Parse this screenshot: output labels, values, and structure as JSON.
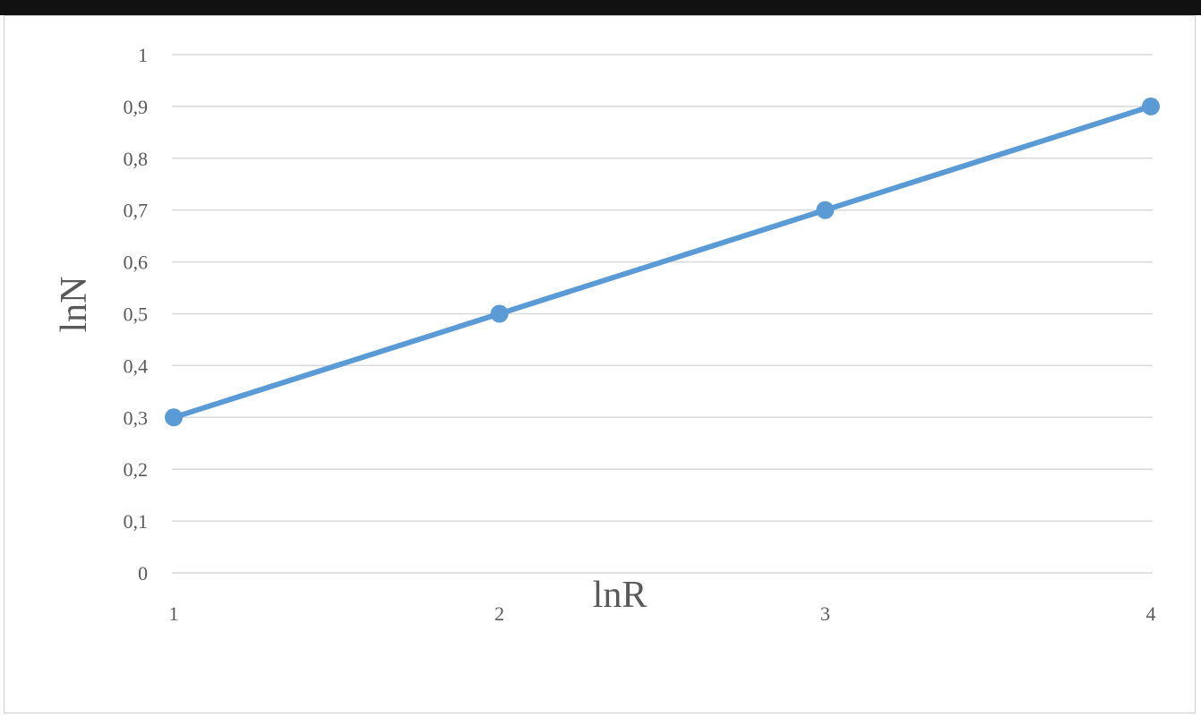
{
  "chart_data": {
    "type": "line",
    "title": "",
    "xlabel": "lnR",
    "ylabel": "lnN",
    "categories": [
      "1",
      "2",
      "3",
      "4"
    ],
    "series": [
      {
        "values": [
          0.3,
          0.5,
          0.7,
          0.9
        ]
      }
    ],
    "ylim": [
      0,
      1
    ],
    "y_ticks": [
      "0",
      "0,1",
      "0,2",
      "0,3",
      "0,4",
      "0,5",
      "0,6",
      "0,7",
      "0,8",
      "0,9",
      "1"
    ],
    "grid": true,
    "legend": "none",
    "colors": {
      "series": "#5b9bd5",
      "grid": "#d9d9d9",
      "text": "#595959",
      "top_band": "#111111"
    }
  }
}
